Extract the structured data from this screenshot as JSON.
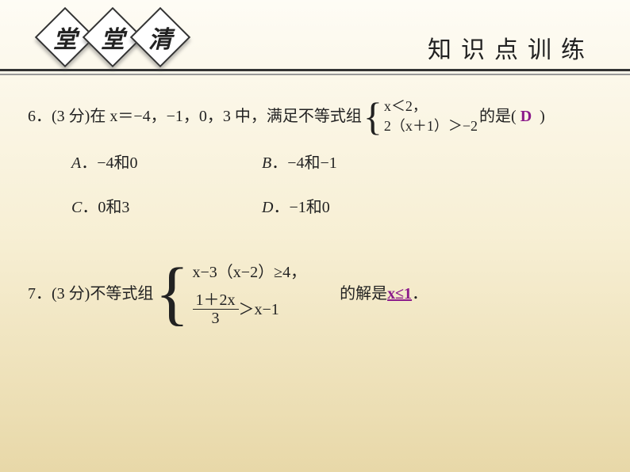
{
  "header": {
    "diamonds": [
      "堂",
      "堂",
      "清"
    ],
    "right_title": "知识点训练"
  },
  "q6": {
    "prefix": "6．(3 分)在 x＝−4，−1，0，3 中，满足不等式组",
    "sys_line1": "x＜2，",
    "sys_line2": "2（x＋1）＞−2",
    "suffix": "的是(",
    "answer": "D",
    "paren_close": ")",
    "options": {
      "A": "A．−4和0",
      "B": "B．−4和−1",
      "C": "C．0和3",
      "D": "D．−1和0"
    }
  },
  "q7": {
    "prefix": "7．(3 分)不等式组",
    "sys_line1": "x−3（x−2）≥4，",
    "frac_num": "1＋2x",
    "frac_den": "3",
    "sys_line2_rest": "＞x−1",
    "mid_text": "的解是",
    "answer": "x≤1",
    "period": "．"
  },
  "colors": {
    "answer_color": "#8b1a8b",
    "text_color": "#222222"
  }
}
